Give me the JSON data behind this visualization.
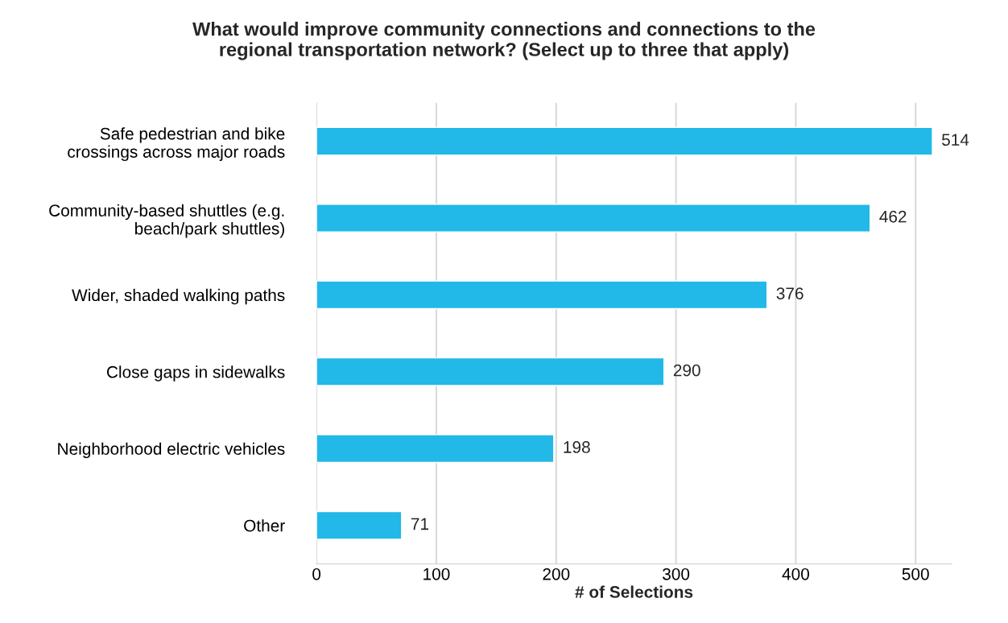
{
  "chart_data": {
    "type": "bar",
    "orientation": "horizontal",
    "title": "What would improve community connections and connections to the\nregional transportation network? (Select up to three that apply)",
    "xlabel": "# of Selections",
    "categories": [
      "Safe pedestrian and bike\ncrossings across major roads",
      "Community-based shuttles (e.g.\nbeach/park shuttles)",
      "Wider, shaded walking paths",
      "Close gaps in sidewalks",
      "Neighborhood electric vehicles",
      "Other"
    ],
    "values": [
      514,
      462,
      376,
      290,
      198,
      71
    ],
    "color": "#22b8e8",
    "xlim": [
      0,
      530
    ],
    "xticks": [
      0,
      100,
      200,
      300,
      400,
      500
    ],
    "grid": "x",
    "data_labels": true,
    "legend": false
  }
}
